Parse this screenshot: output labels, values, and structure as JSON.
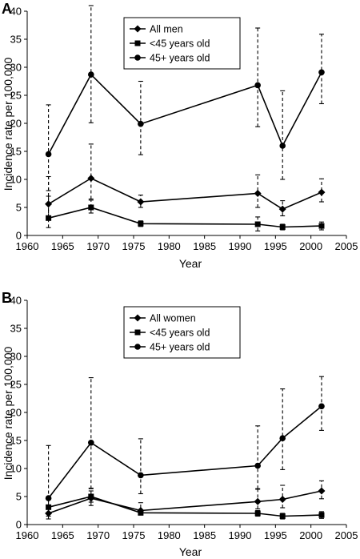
{
  "chart_data": [
    {
      "type": "line",
      "panel_label": "A",
      "xlabel": "Year",
      "ylabel": "Incidence rate per 100,000",
      "xlim": [
        1960,
        2005
      ],
      "ylim": [
        0,
        40
      ],
      "xticks": [
        1960,
        1965,
        1970,
        1975,
        1980,
        1985,
        1990,
        1995,
        2000,
        2005
      ],
      "yticks": [
        0,
        5,
        10,
        15,
        20,
        25,
        30,
        35,
        40
      ],
      "legend_position": "top-center",
      "x": [
        1963,
        1969,
        1976,
        1992.5,
        1996,
        2001.5
      ],
      "series": [
        {
          "name": "All men",
          "marker": "diamond",
          "values": [
            5.6,
            10.2,
            6.0,
            7.5,
            4.7,
            7.7
          ],
          "err_low": [
            3.0,
            6.5,
            5.0,
            5.0,
            3.5,
            6.0
          ],
          "err_high": [
            10.5,
            16.3,
            7.2,
            10.8,
            6.2,
            10.1
          ]
        },
        {
          "name": "<45 years old",
          "marker": "square",
          "values": [
            3.1,
            5.0,
            2.1,
            2.0,
            1.5,
            1.7
          ],
          "err_low": [
            1.4,
            4.0,
            1.6,
            0.8,
            1.0,
            1.0
          ],
          "err_high": [
            7.0,
            6.3,
            2.6,
            3.3,
            2.0,
            2.4
          ]
        },
        {
          "name": "45+ years old",
          "marker": "circle",
          "values": [
            14.5,
            28.7,
            19.9,
            26.8,
            16.0,
            29.1
          ],
          "err_low": [
            8.0,
            20.1,
            14.4,
            19.4,
            10.0,
            23.5
          ],
          "err_high": [
            23.3,
            41.0,
            27.5,
            37.0,
            25.8,
            35.9
          ]
        }
      ]
    },
    {
      "type": "line",
      "panel_label": "B",
      "xlabel": "Year",
      "ylabel": "Incidence rate per 100,000",
      "xlim": [
        1960,
        2005
      ],
      "ylim": [
        0,
        40
      ],
      "xticks": [
        1960,
        1965,
        1970,
        1975,
        1980,
        1985,
        1990,
        1995,
        2000,
        2005
      ],
      "yticks": [
        0,
        5,
        10,
        15,
        20,
        25,
        30,
        35,
        40
      ],
      "legend_position": "top-center",
      "x": [
        1963,
        1969,
        1976,
        1992.5,
        1996,
        2001.5
      ],
      "series": [
        {
          "name": "All women",
          "marker": "diamond",
          "values": [
            2.0,
            4.7,
            2.5,
            4.1,
            4.5,
            6.0
          ],
          "err_low": [
            1.0,
            3.4,
            2.0,
            2.8,
            3.0,
            4.6
          ],
          "err_high": [
            3.5,
            6.5,
            3.9,
            6.3,
            7.0,
            7.8
          ]
        },
        {
          "name": "<45 years old",
          "marker": "square",
          "values": [
            3.1,
            5.0,
            2.1,
            2.0,
            1.5,
            1.7
          ],
          "err_low": [
            2.0,
            4.0,
            1.7,
            1.5,
            1.0,
            1.1
          ],
          "err_high": [
            4.5,
            6.0,
            2.6,
            2.5,
            2.0,
            2.3
          ]
        },
        {
          "name": "45+ years old",
          "marker": "circle",
          "values": [
            4.7,
            14.6,
            8.8,
            10.5,
            15.4,
            21.1
          ],
          "err_low": [
            1.5,
            6.4,
            5.5,
            6.4,
            9.8,
            16.8
          ],
          "err_high": [
            14.1,
            26.2,
            15.3,
            17.6,
            24.2,
            26.4
          ]
        }
      ]
    }
  ]
}
